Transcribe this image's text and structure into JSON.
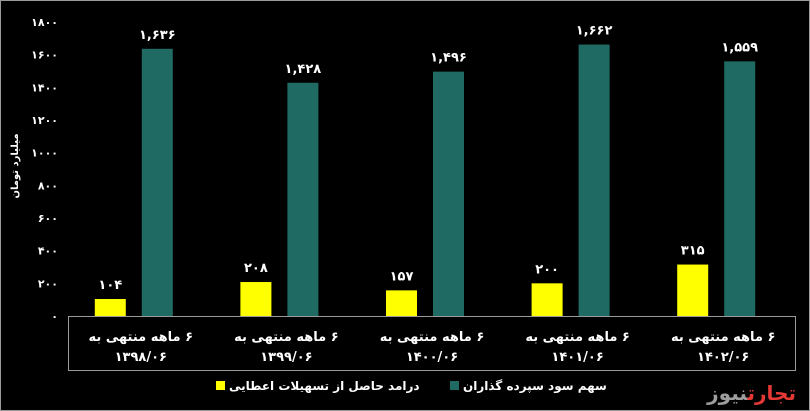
{
  "chart_data": {
    "type": "bar",
    "ylabel": "میلیارد تومان",
    "ylim": [
      0,
      1800
    ],
    "yticks": [
      "۰",
      "۲۰۰",
      "۴۰۰",
      "۶۰۰",
      "۸۰۰",
      "۱۰۰۰",
      "۱۲۰۰",
      "۱۴۰۰",
      "۱۶۰۰",
      "۱۸۰۰"
    ],
    "categories": [
      [
        "۶ ماهه منتهی به",
        "۱۳۹۸/۰۶"
      ],
      [
        "۶ ماهه منتهی به",
        "۱۳۹۹/۰۶"
      ],
      [
        "۶ ماهه منتهی به",
        "۱۴۰۰/۰۶"
      ],
      [
        "۶ ماهه منتهی به",
        "۱۴۰۱/۰۶"
      ],
      [
        "۶ ماهه منتهی به",
        "۱۴۰۲/۰۶"
      ]
    ],
    "series": [
      {
        "name": "درامد حاصل از تسهیلات اعطایی",
        "color": "#ffff00",
        "values": [
          104,
          208,
          157,
          200,
          315
        ],
        "labels": [
          "۱۰۴",
          "۲۰۸",
          "۱۵۷",
          "۲۰۰",
          "۳۱۵"
        ]
      },
      {
        "name": "سهم سود سپرده گذاران",
        "color": "#1f6b63",
        "values": [
          1636,
          1428,
          1496,
          1662,
          1559
        ],
        "labels": [
          "۱,۶۳۶",
          "۱,۴۲۸",
          "۱,۴۹۶",
          "۱,۶۶۲",
          "۱,۵۵۹"
        ]
      }
    ],
    "grid": false,
    "legend": "bottom"
  },
  "logo": {
    "word1": "تجارت",
    "word2": "نیوز"
  }
}
